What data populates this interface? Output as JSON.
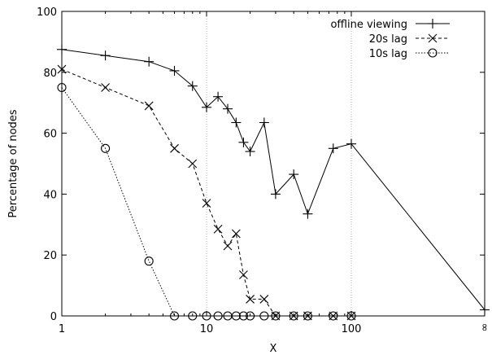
{
  "chart_data": {
    "type": "line",
    "title": "",
    "xlabel": "X",
    "ylabel": "Percentage of nodes",
    "x_scale": "log",
    "xlim": [
      1,
      "∞"
    ],
    "ylim": [
      0,
      100
    ],
    "x_ticks": [
      "1",
      "10",
      "100",
      "∞"
    ],
    "y_ticks": [
      "0",
      "20",
      "40",
      "60",
      "80",
      "100"
    ],
    "grid": "vertical lines at 10 and 100",
    "legend_position": "top-right",
    "series": [
      {
        "name": "offline viewing",
        "marker": "plus",
        "line_style": "solid",
        "points": [
          [
            1,
            87.5
          ],
          [
            2,
            85.5
          ],
          [
            4,
            83.5
          ],
          [
            6,
            80.5
          ],
          [
            8,
            75.5
          ],
          [
            10,
            68.5
          ],
          [
            12,
            72
          ],
          [
            14,
            68
          ],
          [
            16,
            63.5
          ],
          [
            18,
            57
          ],
          [
            20,
            54
          ],
          [
            25,
            63.5
          ],
          [
            30,
            40
          ],
          [
            40,
            46.5
          ],
          [
            50,
            33.5
          ],
          [
            75,
            55
          ],
          [
            100,
            56.5
          ],
          [
            "∞",
            2
          ]
        ]
      },
      {
        "name": "20s lag",
        "marker": "cross",
        "line_style": "dashed",
        "points": [
          [
            1,
            81
          ],
          [
            2,
            75
          ],
          [
            4,
            69
          ],
          [
            6,
            55
          ],
          [
            8,
            50
          ],
          [
            10,
            37
          ],
          [
            12,
            28.5
          ],
          [
            14,
            23
          ],
          [
            16,
            27
          ],
          [
            18,
            13.5
          ],
          [
            20,
            5.5
          ],
          [
            25,
            5.5
          ],
          [
            30,
            0
          ],
          [
            40,
            0
          ],
          [
            50,
            0
          ],
          [
            75,
            0
          ],
          [
            100,
            0
          ]
        ]
      },
      {
        "name": "10s lag",
        "marker": "circle",
        "line_style": "dotted",
        "points": [
          [
            1,
            75
          ],
          [
            2,
            55
          ],
          [
            4,
            18
          ],
          [
            6,
            0
          ],
          [
            8,
            0
          ],
          [
            10,
            0
          ],
          [
            12,
            0
          ],
          [
            14,
            0
          ],
          [
            16,
            0
          ],
          [
            18,
            0
          ],
          [
            20,
            0
          ],
          [
            25,
            0
          ],
          [
            30,
            0
          ],
          [
            40,
            0
          ],
          [
            50,
            0
          ],
          [
            75,
            0
          ],
          [
            100,
            0
          ]
        ]
      }
    ]
  }
}
